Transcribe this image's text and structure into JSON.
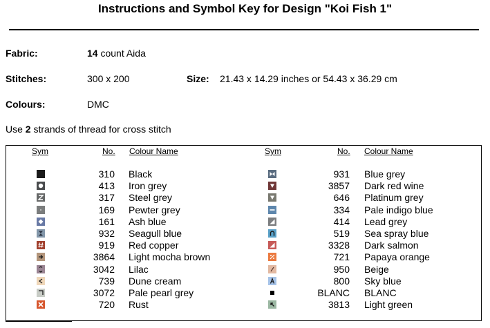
{
  "title": "Instructions and Symbol Key for Design \"Koi Fish 1\"",
  "fabric": {
    "label": "Fabric:",
    "count": "14",
    "rest": " count Aida"
  },
  "stitches": {
    "label": "Stitches:",
    "value": "300 x 200"
  },
  "size": {
    "label": "Size:",
    "value": "21.43 x 14.29 inches or 54.43 x 36.29 cm"
  },
  "colours": {
    "label": "Colours:",
    "value": "DMC"
  },
  "use_line": {
    "pre": "Use ",
    "num": "2",
    "post": " strands of thread for cross stitch"
  },
  "headers": {
    "sym": "Sym",
    "no": "No.",
    "name": "Colour Name"
  },
  "left_rows": [
    {
      "no": "310",
      "name": "Black",
      "color": "#1a1a1a",
      "icon": "solid-square-icon"
    },
    {
      "no": "413",
      "name": "Iron grey",
      "color": "#4a4c4e",
      "icon": "circle-icon"
    },
    {
      "no": "317",
      "name": "Steel grey",
      "color": "#666868",
      "icon": "letter-z-icon"
    },
    {
      "no": "169",
      "name": "Pewter grey",
      "color": "#7b7d7d",
      "icon": "dot-icon"
    },
    {
      "no": "161",
      "name": "Ash blue",
      "color": "#6879a5",
      "icon": "diamond-icon"
    },
    {
      "no": "932",
      "name": "Seagull blue",
      "color": "#8397aa",
      "icon": "hourglass-icon"
    },
    {
      "no": "919",
      "name": "Red copper",
      "color": "#a2412f",
      "icon": "hash-icon"
    },
    {
      "no": "3864",
      "name": "Light mocha brown",
      "color": "#b3957b",
      "icon": "arrow-right-icon"
    },
    {
      "no": "3042",
      "name": "Lilac",
      "color": "#9a8493",
      "icon": "double-arrow-icon"
    },
    {
      "no": "739",
      "name": "Dune cream",
      "color": "#efd7b9",
      "icon": "less-than-icon"
    },
    {
      "no": "3072",
      "name": "Pale pearl grey",
      "color": "#c8ccc6",
      "icon": "corner-icon"
    },
    {
      "no": "720",
      "name": "Rust",
      "color": "#d7572e",
      "icon": "cross-icon"
    }
  ],
  "right_rows": [
    {
      "no": "931",
      "name": "Blue grey",
      "color": "#5a6c80",
      "icon": "bowtie-icon"
    },
    {
      "no": "3857",
      "name": "Dark red wine",
      "color": "#6f3737",
      "icon": "down-triangle-icon"
    },
    {
      "no": "646",
      "name": "Platinum grey",
      "color": "#797970",
      "icon": "down-triangle-icon"
    },
    {
      "no": "334",
      "name": "Pale indigo blue",
      "color": "#5e87ad",
      "icon": "dash-icon"
    },
    {
      "no": "414",
      "name": "Lead grey",
      "color": "#7c7e80",
      "icon": "wedge-icon"
    },
    {
      "no": "519",
      "name": "Sea spray blue",
      "color": "#5aa1c8",
      "icon": "arch-icon"
    },
    {
      "no": "3328",
      "name": "Dark salmon",
      "color": "#c75a58",
      "icon": "wedge-icon"
    },
    {
      "no": "721",
      "name": "Papaya orange",
      "color": "#eb7a40",
      "icon": "percent-icon"
    },
    {
      "no": "950",
      "name": "Beige",
      "color": "#e2b9a2",
      "icon": "slash-icon"
    },
    {
      "no": "800",
      "name": "Sky blue",
      "color": "#a6c3e8",
      "icon": "letter-a-icon"
    },
    {
      "no": "BLANC",
      "name": "BLANC",
      "color": "#ffffff",
      "icon": "small-square-icon"
    },
    {
      "no": "3813",
      "name": "Light green",
      "color": "#9bb7a2",
      "icon": "arrow-up-left-icon"
    }
  ]
}
